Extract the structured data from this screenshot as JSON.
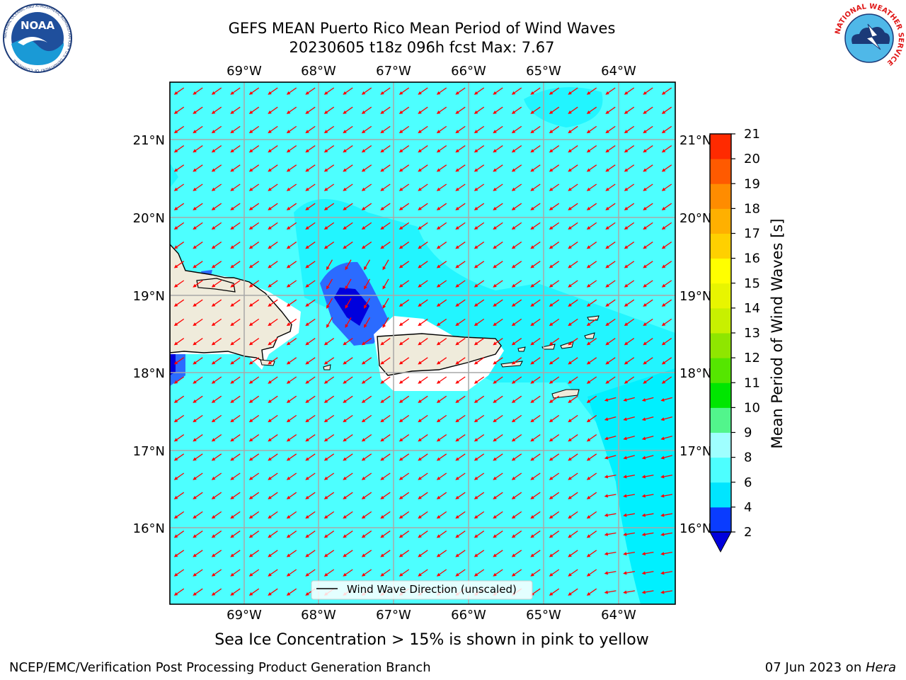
{
  "header": {
    "title_line1": "GEFS MEAN Puerto Rico Mean Period of Wind Waves",
    "title_line2": "20230605 t18z 096h fcst   Max: 7.67",
    "noaa_logo_text": "NOAA",
    "noaa_ring_text": "NATIONAL OCEANIC AND ATMOSPHERIC ADMINISTRATION • U.S. DEPARTMENT OF COMMERCE",
    "nws_ring_text": "NATIONAL WEATHER SERVICE"
  },
  "map": {
    "lon_labels": [
      "69°W",
      "68°W",
      "67°W",
      "66°W",
      "65°W",
      "64°W"
    ],
    "lat_labels": [
      "21°N",
      "20°N",
      "19°N",
      "18°N",
      "17°N",
      "16°N"
    ],
    "legend_label": "Wind Wave Direction (unscaled)",
    "arrow_color": "#ff0000",
    "land_color": "#efebdb",
    "ocean_base_color": "#4dffff"
  },
  "colorbar": {
    "label": "Mean Period of Wind Waves [s]",
    "ticks": [
      "2",
      "4",
      "6",
      "8",
      "9",
      "10",
      "11",
      "12",
      "13",
      "14",
      "15",
      "16",
      "17",
      "18",
      "19",
      "20",
      "21"
    ],
    "colors": [
      "#0a3cff",
      "#00e5ff",
      "#4dffff",
      "#9fffff",
      "#52f58c",
      "#00e600",
      "#55e600",
      "#8fe600",
      "#c8f000",
      "#e8f500",
      "#ffff00",
      "#ffd000",
      "#ffb000",
      "#ff8c00",
      "#ff5a00",
      "#ff2a00"
    ],
    "extend_color": "#0000dd"
  },
  "footer": {
    "sea_ice_note": "Sea Ice Concentration > 15% is shown in pink to yellow",
    "branch": "NCEP/EMC/Verification Post Processing Product Generation Branch",
    "date": "07 Jun 2023 on ",
    "machine": "Hera"
  }
}
